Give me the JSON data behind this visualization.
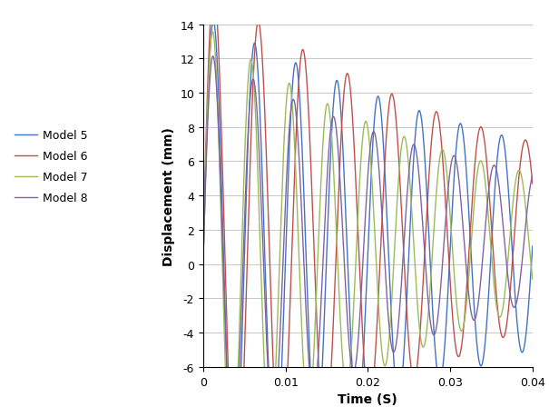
{
  "title": "",
  "xlabel": "Time (S)",
  "ylabel": "Displacement (mm)",
  "xlim": [
    0,
    0.04
  ],
  "ylim": [
    -6,
    14
  ],
  "yticks": [
    -6,
    -4,
    -2,
    0,
    2,
    4,
    6,
    8,
    10,
    12,
    14
  ],
  "xticks": [
    0,
    0.01,
    0.02,
    0.03,
    0.04
  ],
  "xtick_labels": [
    "0",
    "0.01",
    "0.02",
    "0.03",
    "0.04"
  ],
  "colors": {
    "model5": "#4472C4",
    "model6": "#C0504D",
    "model7": "#9BBB59",
    "model8": "#8064A2"
  },
  "legend_labels": [
    "Model 5",
    "Model 6",
    "Model 7",
    "Model 8"
  ],
  "background_color": "#FFFFFF",
  "grid_color": "#C8C8C8"
}
